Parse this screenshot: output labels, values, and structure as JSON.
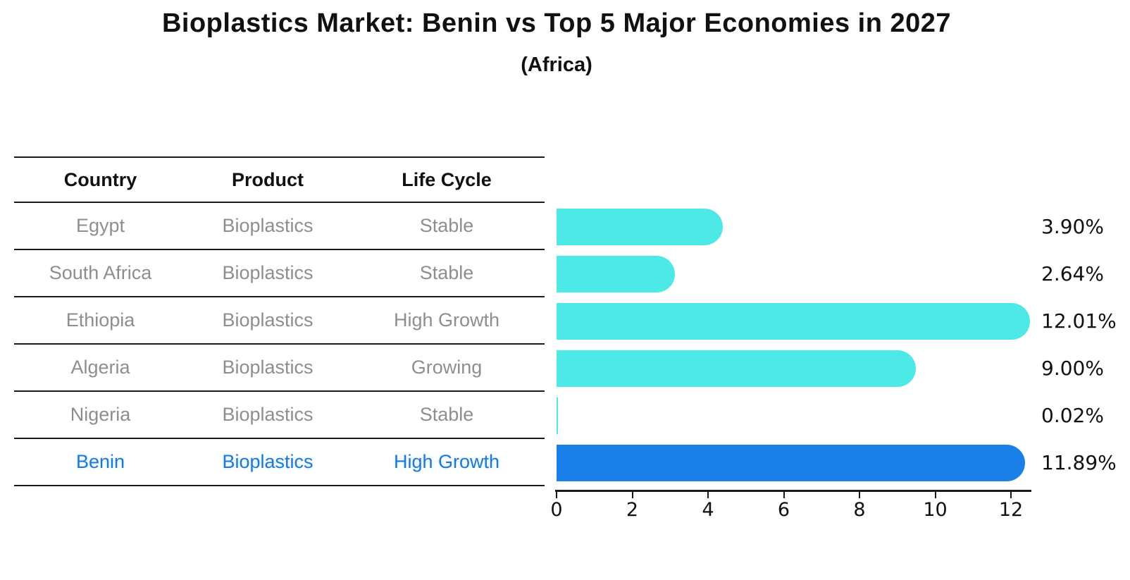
{
  "title": "Bioplastics Market: Benin vs Top 5 Major Economies in 2027",
  "subtitle": "(Africa)",
  "table": {
    "headers": [
      "Country",
      "Product",
      "Life Cycle"
    ],
    "rows": [
      {
        "country": "Egypt",
        "product": "Bioplastics",
        "life_cycle": "Stable",
        "value": 3.9,
        "value_label": "3.90%",
        "highlight": false
      },
      {
        "country": "South Africa",
        "product": "Bioplastics",
        "life_cycle": "Stable",
        "value": 2.64,
        "value_label": "2.64%",
        "highlight": false
      },
      {
        "country": "Ethiopia",
        "product": "Bioplastics",
        "life_cycle": "High Growth",
        "value": 12.01,
        "value_label": "12.01%",
        "highlight": false
      },
      {
        "country": "Algeria",
        "product": "Bioplastics",
        "life_cycle": "Growing",
        "value": 9.0,
        "value_label": "9.00%",
        "highlight": false
      },
      {
        "country": "Nigeria",
        "product": "Bioplastics",
        "life_cycle": "Stable",
        "value": 0.02,
        "value_label": "0.02%",
        "highlight": false
      },
      {
        "country": "Benin",
        "product": "Bioplastics",
        "life_cycle": "High Growth",
        "value": 11.89,
        "value_label": "11.89%",
        "highlight": true
      }
    ]
  },
  "chart_data": {
    "type": "bar",
    "orientation": "horizontal",
    "title": "Bioplastics Market: Benin vs Top 5 Major Economies in 2027 (Africa)",
    "categories": [
      "Egypt",
      "South Africa",
      "Ethiopia",
      "Algeria",
      "Nigeria",
      "Benin"
    ],
    "values": [
      3.9,
      2.64,
      12.01,
      9.0,
      0.02,
      11.89
    ],
    "value_labels": [
      "3.90%",
      "2.64%",
      "12.01%",
      "9.00%",
      "0.02%",
      "11.89%"
    ],
    "x_ticks": [
      0,
      2,
      4,
      6,
      8,
      10,
      12
    ],
    "xlim": [
      0,
      12.55
    ],
    "grid": false,
    "legend": false,
    "value_label_position": "right",
    "highlight_index": 5,
    "colors": {
      "bar": "#4de9e6",
      "highlight_bar": "#1a80e8",
      "highlight_text": "#2079d0",
      "table_text": "#8e8e8e",
      "axis": "#1a1a1a"
    }
  }
}
